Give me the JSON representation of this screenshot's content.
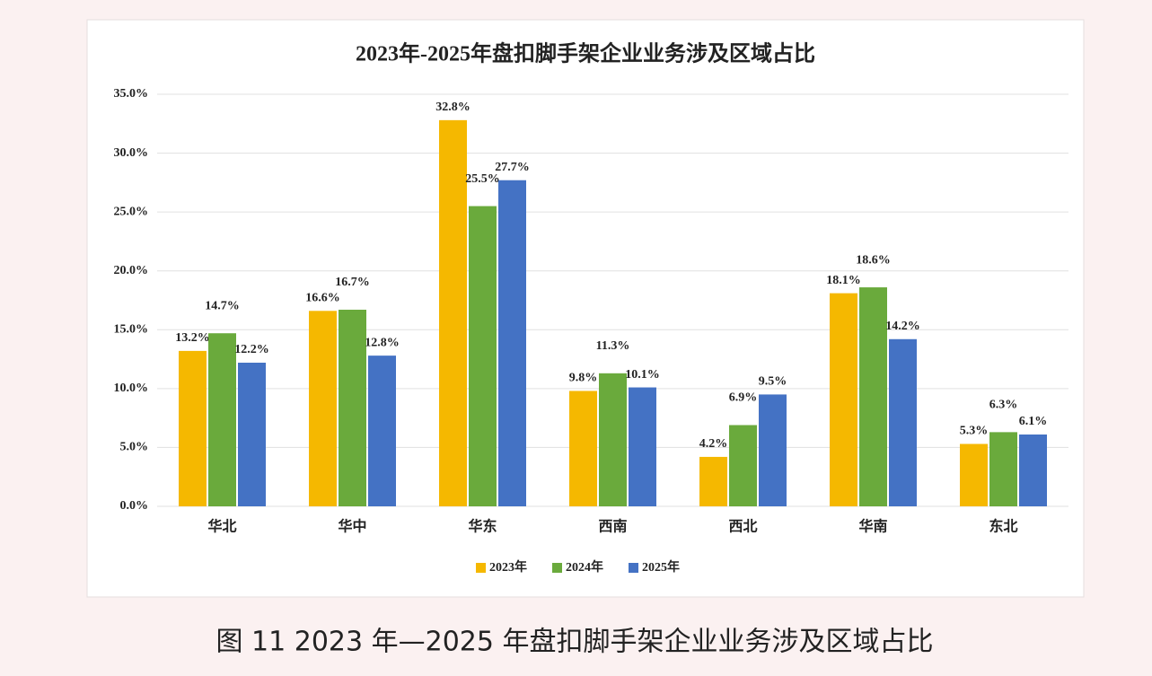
{
  "chart_data": {
    "type": "bar",
    "title": "2023年-2025年盘扣脚手架企业业务涉及区域占比",
    "caption": "图 11  2023 年—2025 年盘扣脚手架企业业务涉及区域占比",
    "categories": [
      "华北",
      "华中",
      "华东",
      "西南",
      "西北",
      "华南",
      "东北"
    ],
    "series": [
      {
        "name": "2023年",
        "color": "#f5b800",
        "values": [
          13.2,
          16.6,
          32.8,
          9.8,
          4.2,
          18.1,
          5.3
        ],
        "value_labels": [
          "13.2%",
          "16.6%",
          "32.8%",
          "9.8%",
          "4.2%",
          "18.1%",
          "5.3%"
        ]
      },
      {
        "name": "2024年",
        "color": "#6aaa3c",
        "values": [
          14.7,
          16.7,
          25.5,
          11.3,
          6.9,
          18.6,
          6.3
        ],
        "value_labels": [
          "14.7%",
          "16.7%",
          "25.5%",
          "11.3%",
          "6.9%",
          "18.6%",
          "6.3%"
        ]
      },
      {
        "name": "2025年",
        "color": "#4472c4",
        "values": [
          12.2,
          12.8,
          27.7,
          10.1,
          9.5,
          14.2,
          6.1
        ],
        "value_labels": [
          "12.2%",
          "12.8%",
          "27.7%",
          "10.1%",
          "9.5%",
          "14.2%",
          "6.1%"
        ]
      }
    ],
    "ylim": [
      0,
      35
    ],
    "yticks": [
      {
        "value": 0,
        "label": "0.0%"
      },
      {
        "value": 5,
        "label": "5.0%"
      },
      {
        "value": 10,
        "label": "10.0%"
      },
      {
        "value": 15,
        "label": "15.0%"
      },
      {
        "value": 20,
        "label": "20.0%"
      },
      {
        "value": 25,
        "label": "25.0%"
      },
      {
        "value": 30,
        "label": "30.0%"
      },
      {
        "value": 35,
        "label": "35.0%"
      }
    ],
    "grid": true,
    "legend": "bottom"
  }
}
